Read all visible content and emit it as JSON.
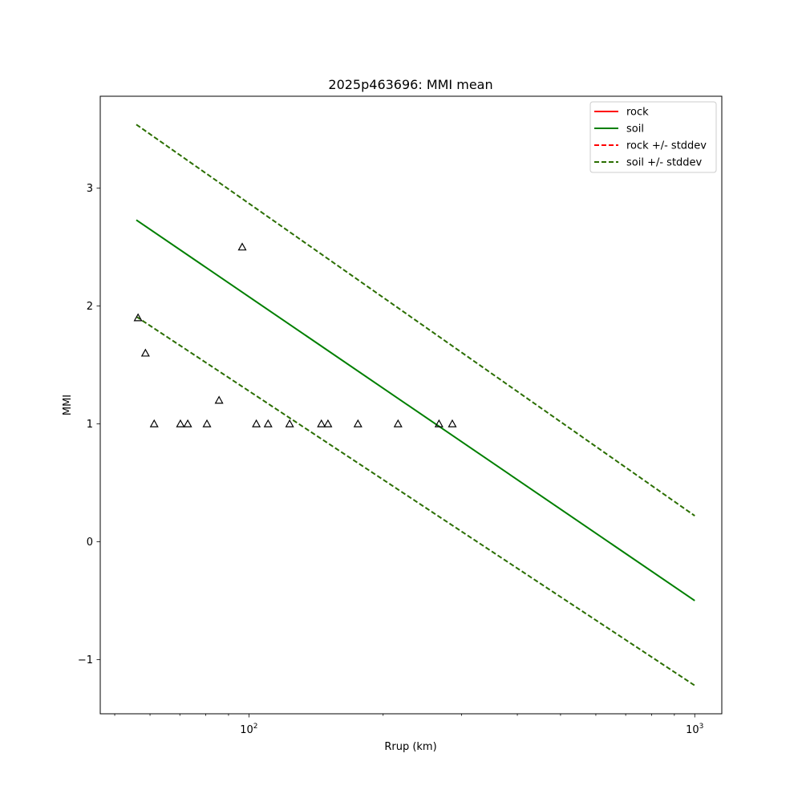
{
  "chart_data": {
    "type": "line",
    "title": "2025p463696: MMI mean",
    "xlabel": "Rrup (km)",
    "ylabel": "MMI",
    "xscale": "log",
    "xlim": [
      46.4,
      1150
    ],
    "ylim": [
      -1.46,
      3.78
    ],
    "grid": false,
    "legend_position": "top-right",
    "x_ticks": [
      {
        "value": 100,
        "label": "10",
        "sup": "2"
      },
      {
        "value": 1000,
        "label": "10",
        "sup": "3"
      }
    ],
    "y_ticks": [
      {
        "value": -1,
        "label": "−1"
      },
      {
        "value": 0,
        "label": "0"
      },
      {
        "value": 1,
        "label": "1"
      },
      {
        "value": 2,
        "label": "2"
      },
      {
        "value": 3,
        "label": "3"
      }
    ],
    "series": [
      {
        "name": "rock",
        "style": "solid",
        "color": "#ff0000",
        "x": [
          55.9,
          1000
        ],
        "y": [
          2.73,
          -0.5
        ],
        "show_line": false
      },
      {
        "name": "soil",
        "style": "solid",
        "color": "#007f00",
        "x": [
          55.9,
          1000
        ],
        "y": [
          2.73,
          -0.5
        ],
        "show_line": true
      },
      {
        "name": "rock +/- stddev",
        "style": "dashed",
        "color": "#ff0000",
        "x": [
          55.9,
          1000
        ],
        "y_upper": [
          3.54,
          0.22
        ],
        "y_lower": [
          1.91,
          -1.22
        ],
        "show_line": false
      },
      {
        "name": "soil +/- stddev",
        "style": "dashed",
        "color": "#2a6e00",
        "x": [
          55.9,
          1000
        ],
        "y_upper": [
          3.54,
          0.22
        ],
        "y_lower": [
          1.91,
          -1.22
        ],
        "show_line": true
      }
    ],
    "observations": {
      "marker": "triangle",
      "color": "#000000",
      "points": [
        {
          "x": 56.4,
          "y": 1.9
        },
        {
          "x": 58.6,
          "y": 1.6
        },
        {
          "x": 61.3,
          "y": 1.0
        },
        {
          "x": 70.2,
          "y": 1.0
        },
        {
          "x": 72.9,
          "y": 1.0
        },
        {
          "x": 80.5,
          "y": 1.0
        },
        {
          "x": 85.7,
          "y": 1.2
        },
        {
          "x": 96.6,
          "y": 2.5
        },
        {
          "x": 103.9,
          "y": 1.0
        },
        {
          "x": 110.4,
          "y": 1.0
        },
        {
          "x": 123.4,
          "y": 1.0
        },
        {
          "x": 145.4,
          "y": 1.0
        },
        {
          "x": 150.4,
          "y": 1.0
        },
        {
          "x": 175.6,
          "y": 1.0
        },
        {
          "x": 216.0,
          "y": 1.0
        },
        {
          "x": 266.9,
          "y": 1.0
        },
        {
          "x": 285.9,
          "y": 1.0
        }
      ]
    }
  }
}
